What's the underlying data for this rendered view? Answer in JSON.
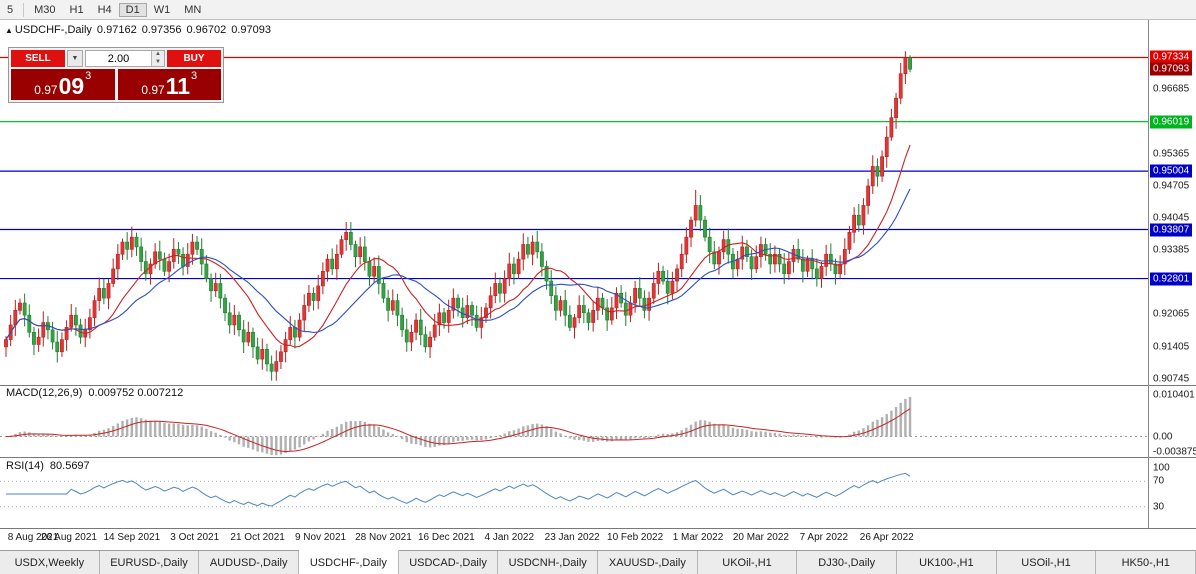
{
  "toolbar": {
    "timeframes": [
      "5",
      "M30",
      "H1",
      "H4",
      "D1",
      "W1",
      "MN"
    ],
    "active": "D1"
  },
  "chart_header": {
    "symbol": "USDCHF-,Daily",
    "open": "0.97162",
    "high": "0.97356",
    "low": "0.96702",
    "close": "0.97093"
  },
  "trade_panel": {
    "sell_label": "SELL",
    "buy_label": "BUY",
    "volume": "2.00",
    "sell_price": {
      "base": "0.97",
      "big": "09",
      "sup": "3"
    },
    "buy_price": {
      "base": "0.97",
      "big": "11",
      "sup": "3"
    }
  },
  "icons": {
    "chart_marker": "▲",
    "dropdown": "▼",
    "spin_up": "▲",
    "spin_down": "▼"
  },
  "price_axis": {
    "tagged": [
      {
        "price": 0.97334,
        "label": "0.97334",
        "type": "level-red"
      },
      {
        "price": 0.97093,
        "label": "0.97093",
        "type": "current"
      },
      {
        "price": 0.96019,
        "label": "0.96019",
        "type": "level-green"
      },
      {
        "price": 0.95004,
        "label": "0.95004",
        "type": "level-blue"
      },
      {
        "price": 0.93807,
        "label": "0.93807",
        "type": "level-blue"
      },
      {
        "price": 0.92801,
        "label": "0.92801",
        "type": "level-blue"
      }
    ],
    "plain": [
      "0.96685",
      "0.95365",
      "0.94705",
      "0.94045",
      "0.93385",
      "0.92065",
      "0.91405",
      "0.90745"
    ]
  },
  "indicators": {
    "macd": {
      "label": "MACD(12,26,9)",
      "values": "0.009752 0.007212",
      "axis": [
        "0.010401",
        "0.00",
        "-0.003875"
      ],
      "fast": 12,
      "slow": 26,
      "signal": 9
    },
    "rsi": {
      "label": "RSI(14)",
      "value": "80.5697",
      "axis": [
        100,
        70,
        30
      ],
      "period": 14
    }
  },
  "chart_data": {
    "type": "candlestick",
    "symbol": "USDCHF",
    "timeframe": "Daily",
    "ohlc_display": {
      "open": 0.97162,
      "high": 0.97356,
      "low": 0.96702,
      "close": 0.97093
    },
    "levels": [
      {
        "price": 0.97334,
        "color_key": "level_red"
      },
      {
        "price": 0.96019,
        "color_key": "level_green"
      },
      {
        "price": 0.95004,
        "color_key": "level_blue"
      },
      {
        "price": 0.93807,
        "color_key": "level_blue"
      },
      {
        "price": 0.92801,
        "color_key": "level_blue"
      }
    ],
    "price_range": {
      "max": 0.98,
      "min": 0.9066
    },
    "macd_range": {
      "max": 0.0116,
      "min": -0.0046
    },
    "ma_fast_period": 13,
    "ma_slow_period": 21,
    "first_open": 0.914,
    "closes": [
      0.9155,
      0.9185,
      0.9215,
      0.923,
      0.9205,
      0.917,
      0.9145,
      0.916,
      0.919,
      0.9175,
      0.915,
      0.913,
      0.9155,
      0.918,
      0.9205,
      0.9185,
      0.916,
      0.9175,
      0.92,
      0.9235,
      0.926,
      0.924,
      0.927,
      0.93,
      0.933,
      0.9355,
      0.934,
      0.9365,
      0.9345,
      0.9315,
      0.929,
      0.931,
      0.9335,
      0.932,
      0.9295,
      0.9315,
      0.934,
      0.933,
      0.9305,
      0.933,
      0.9355,
      0.934,
      0.931,
      0.928,
      0.9255,
      0.927,
      0.924,
      0.921,
      0.9185,
      0.9205,
      0.9175,
      0.915,
      0.917,
      0.914,
      0.9115,
      0.9135,
      0.9105,
      0.909,
      0.911,
      0.913,
      0.9155,
      0.918,
      0.916,
      0.9195,
      0.9225,
      0.925,
      0.9235,
      0.9265,
      0.9295,
      0.932,
      0.93,
      0.933,
      0.936,
      0.9375,
      0.935,
      0.9325,
      0.9345,
      0.9315,
      0.9285,
      0.9305,
      0.927,
      0.924,
      0.9215,
      0.9235,
      0.9205,
      0.9175,
      0.915,
      0.917,
      0.9195,
      0.9165,
      0.914,
      0.916,
      0.9185,
      0.921,
      0.919,
      0.9215,
      0.924,
      0.922,
      0.92,
      0.9225,
      0.9205,
      0.918,
      0.92,
      0.922,
      0.9245,
      0.927,
      0.925,
      0.928,
      0.931,
      0.929,
      0.932,
      0.935,
      0.933,
      0.9355,
      0.9335,
      0.9305,
      0.9275,
      0.9245,
      0.9215,
      0.9235,
      0.9205,
      0.918,
      0.92,
      0.9225,
      0.921,
      0.919,
      0.9215,
      0.924,
      0.922,
      0.9195,
      0.922,
      0.925,
      0.923,
      0.9205,
      0.923,
      0.926,
      0.924,
      0.9215,
      0.924,
      0.927,
      0.9295,
      0.9275,
      0.925,
      0.9275,
      0.93,
      0.933,
      0.9365,
      0.94,
      0.943,
      0.94,
      0.9365,
      0.9335,
      0.931,
      0.9335,
      0.936,
      0.933,
      0.93,
      0.932,
      0.9345,
      0.9325,
      0.93,
      0.9325,
      0.935,
      0.933,
      0.931,
      0.933,
      0.931,
      0.929,
      0.9315,
      0.934,
      0.932,
      0.9295,
      0.932,
      0.93,
      0.928,
      0.9305,
      0.933,
      0.931,
      0.929,
      0.931,
      0.934,
      0.9375,
      0.941,
      0.939,
      0.943,
      0.947,
      0.951,
      0.949,
      0.953,
      0.957,
      0.961,
      0.965,
      0.97,
      0.9733,
      0.97093
    ],
    "date_labels": [
      "8 Aug 2021",
      "26 Aug 2021",
      "14 Sep 2021",
      "3 Oct 2021",
      "21 Oct 2021",
      "9 Nov 2021",
      "28 Nov 2021",
      "16 Dec 2021",
      "4 Jan 2022",
      "23 Jan 2022",
      "10 Feb 2022",
      "1 Mar 2022",
      "20 Mar 2022",
      "7 Apr 2022",
      "26 Apr 2022"
    ]
  },
  "colors": {
    "bull": "#e23535",
    "bull_stroke": "#b62020",
    "bear": "#35a344",
    "bear_stroke": "#1e7e2e",
    "ma_fast": "#cc2222",
    "ma_slow": "#2a4fc0",
    "level_red": "#e00000",
    "level_green": "#00c926",
    "level_blue": "#0000c8",
    "tag_red": "#e00000",
    "tag_green": "#00b41e",
    "tag_blue": "#0000c8",
    "tag_current": "#9b0000",
    "macd_bar": "#b0b0b0",
    "macd_signal": "#cc2222",
    "rsi_line": "#4a86c8",
    "rsi_level": "#9aa8b8",
    "separator": "#787878",
    "axis_line": "#888888"
  },
  "tabs": {
    "active_index": 3,
    "items": [
      "USDX,Weekly",
      "EURUSD-,Daily",
      "AUDUSD-,Daily",
      "USDCHF-,Daily",
      "USDCAD-,Daily",
      "USDCNH-,Daily",
      "XAUUSD-,Daily",
      "UKOil-,H1",
      "DJ30-,Daily",
      "UK100-,H1",
      "USOil-,H1",
      "HK50-,H1"
    ]
  }
}
